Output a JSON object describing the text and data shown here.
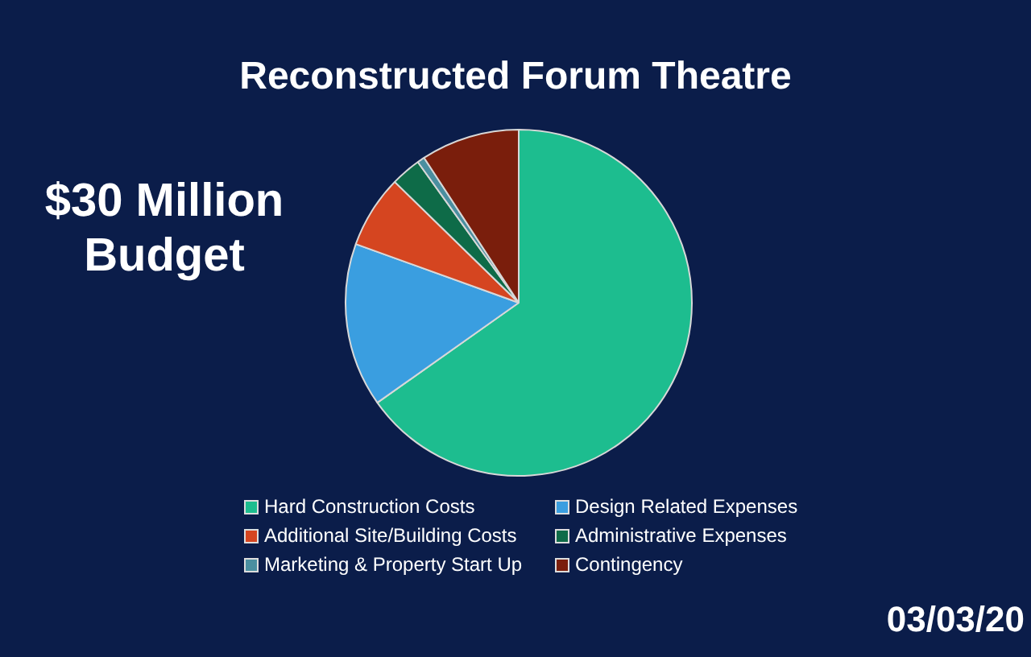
{
  "chart_data": {
    "type": "pie",
    "title": "Reconstructed Forum Theatre",
    "categories": [
      "Hard Construction Costs",
      "Design Related Expenses",
      "Additional Site/Building Costs",
      "Administrative Expenses",
      "Marketing & Property Start Up",
      "Contingency"
    ],
    "values": [
      65.2,
      15.3,
      6.8,
      2.8,
      0.7,
      9.2
    ],
    "colors": [
      "#1dbd8f",
      "#3a9ee0",
      "#d54520",
      "#0e6b48",
      "#4a8fa0",
      "#7a1e0c"
    ],
    "legend": "bottom",
    "annotations": [
      "$30 Million Budget",
      "03/03/20"
    ]
  }
}
